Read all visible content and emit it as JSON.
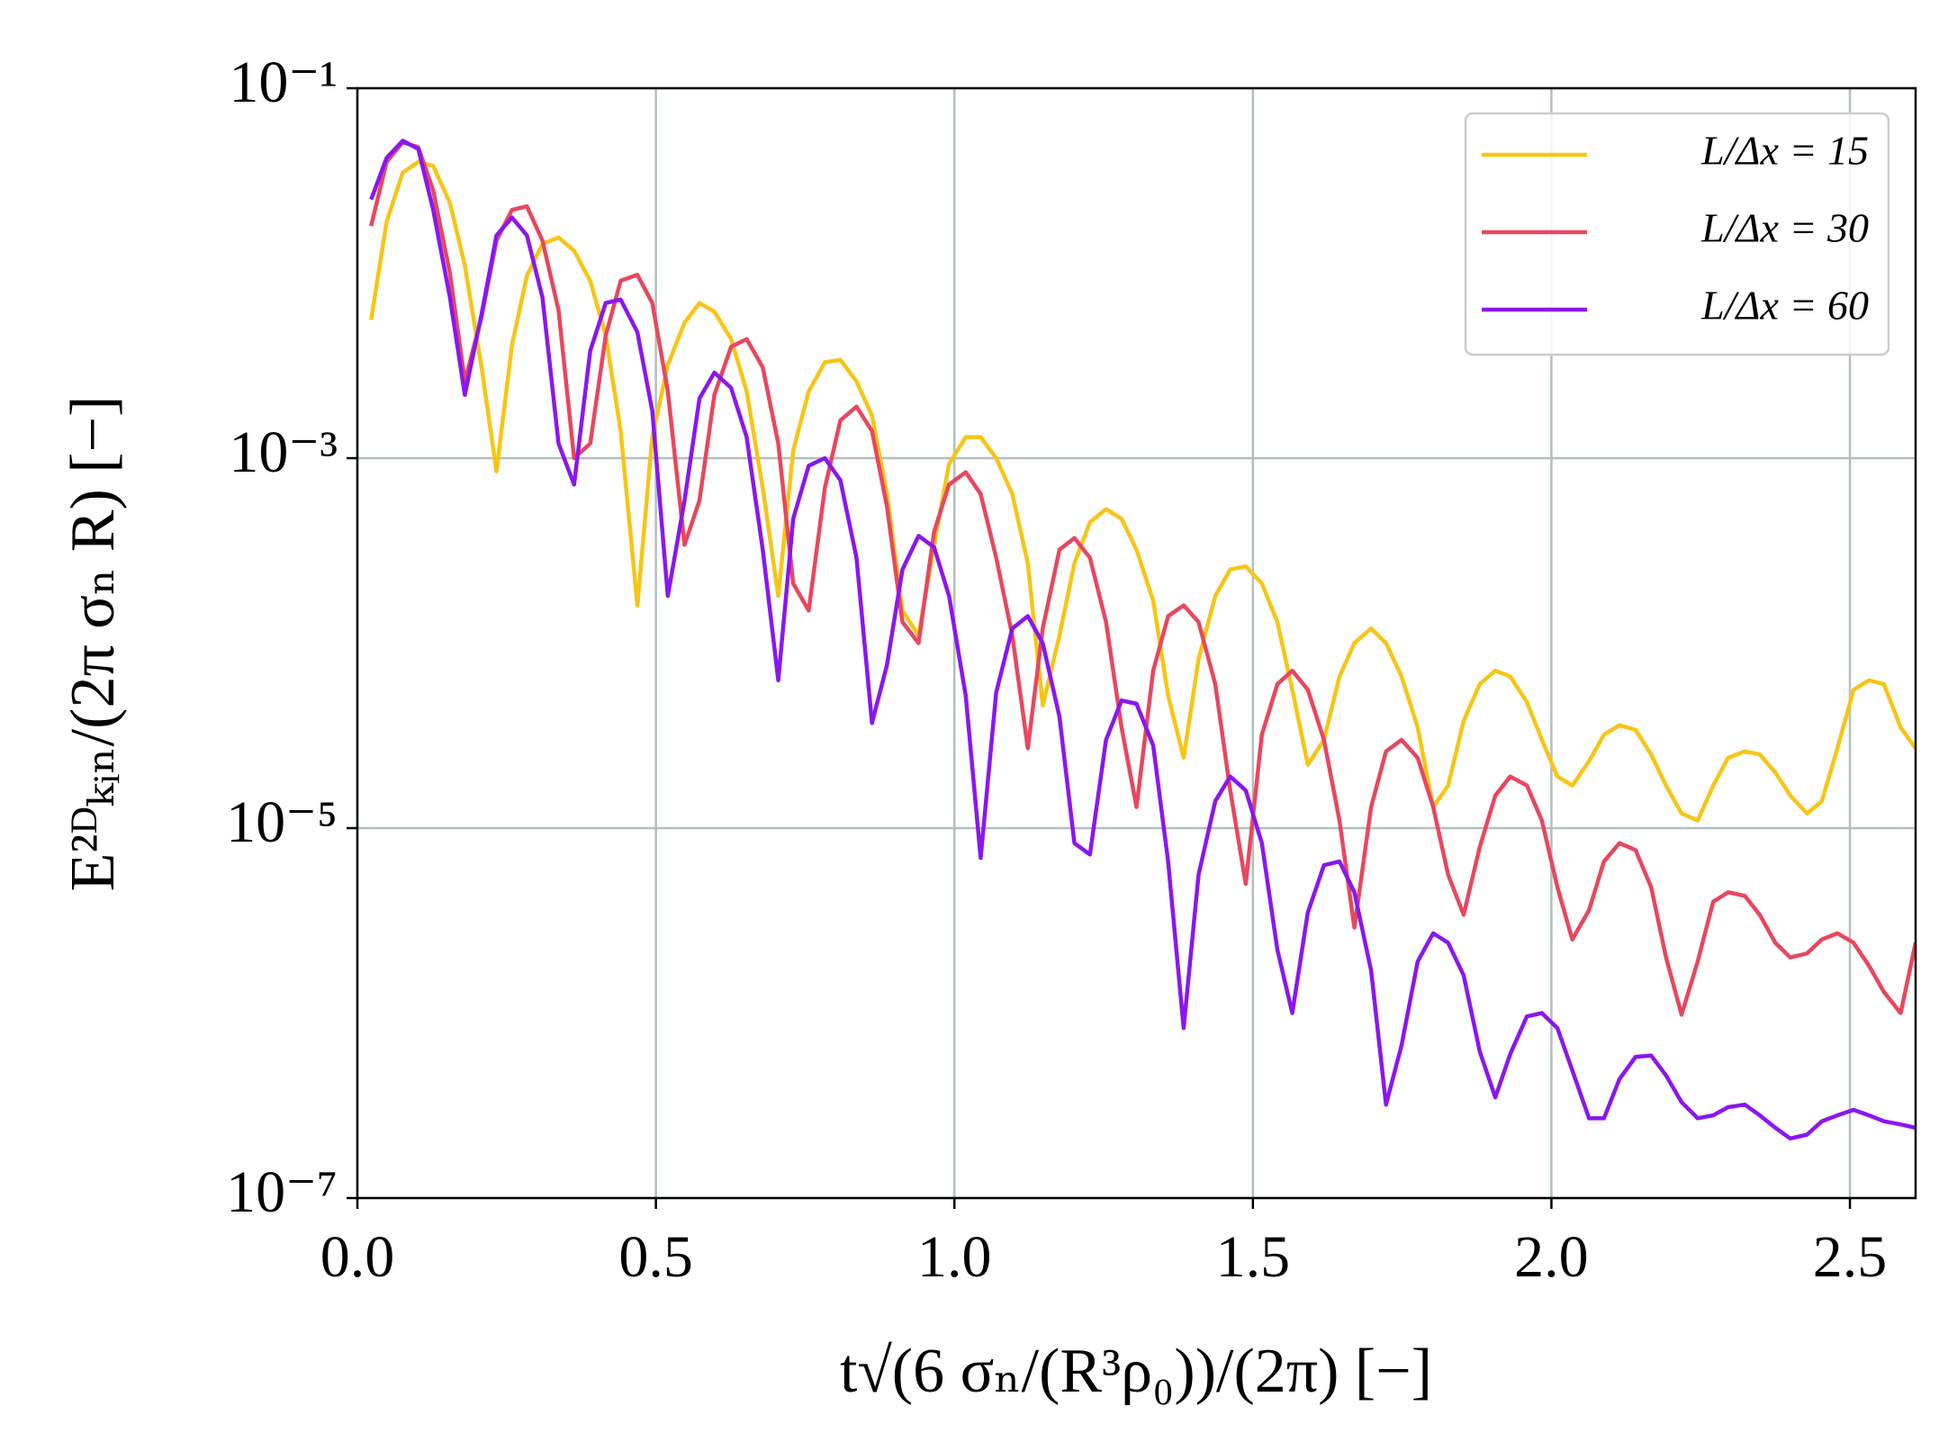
{
  "chart_data": {
    "type": "line",
    "xlabel": "t√(6 σₙ/(R³ρ₀))/(2π) [−]",
    "ylabel": "E²ᴰₖᵢₙ/(2π σₙ R) [−]",
    "yscale": "log",
    "grid": true,
    "legend": "upper right",
    "xlim": [
      0,
      2.61
    ],
    "ylim": [
      1e-07,
      0.1
    ],
    "xticks": [
      {
        "value": 0,
        "label": "0.0"
      },
      0.5,
      {
        "value": 1,
        "label": "1.0"
      },
      1.5,
      {
        "value": 2,
        "label": "2.0"
      },
      2.5
    ],
    "yticks": [
      {
        "value": 1e-07,
        "label": "10⁻⁷"
      },
      {
        "value": 1e-05,
        "label": "10⁻⁵"
      },
      {
        "value": 0.001,
        "label": "10⁻³"
      },
      {
        "value": 0.1,
        "label": "10⁻¹"
      }
    ],
    "x": [
      0.023,
      0.049,
      0.076,
      0.102,
      0.127,
      0.155,
      0.18,
      0.208,
      0.233,
      0.259,
      0.284,
      0.31,
      0.337,
      0.363,
      0.39,
      0.416,
      0.441,
      0.469,
      0.494,
      0.52,
      0.548,
      0.573,
      0.598,
      0.626,
      0.652,
      0.679,
      0.705,
      0.73,
      0.756,
      0.783,
      0.809,
      0.836,
      0.862,
      0.887,
      0.913,
      0.94,
      0.966,
      0.991,
      1.019,
      1.044,
      1.07,
      1.097,
      1.123,
      1.148,
      1.176,
      1.201,
      1.227,
      1.254,
      1.28,
      1.305,
      1.333,
      1.358,
      1.384,
      1.409,
      1.437,
      1.462,
      1.488,
      1.515,
      1.541,
      1.566,
      1.592,
      1.619,
      1.645,
      1.67,
      1.698,
      1.723,
      1.749,
      1.776,
      1.802,
      1.827,
      1.853,
      1.88,
      1.906,
      1.931,
      1.959,
      1.984,
      2.01,
      2.035,
      2.063,
      2.088,
      2.114,
      2.141,
      2.167,
      2.192,
      2.218,
      2.245,
      2.271,
      2.296,
      2.324,
      2.349,
      2.375,
      2.4,
      2.428,
      2.453,
      2.479,
      2.506,
      2.532,
      2.557,
      2.585,
      2.61
    ],
    "series": [
      {
        "name": "L/Δx = 15",
        "color": "#f7c516",
        "values": [
          0.0056,
          0.019,
          0.035,
          0.04,
          0.038,
          0.024,
          0.011,
          0.0031,
          0.00085,
          0.0041,
          0.0097,
          0.0144,
          0.0156,
          0.0132,
          0.0091,
          0.0046,
          0.0014,
          0.00016,
          0.0013,
          0.0032,
          0.0054,
          0.0069,
          0.0062,
          0.0044,
          0.0023,
          0.00069,
          0.00018,
          0.0011,
          0.0023,
          0.0033,
          0.0034,
          0.0026,
          0.0017,
          0.00064,
          0.00015,
          0.00011,
          0.00034,
          0.00093,
          0.0013,
          0.0013,
          0.001,
          0.00064,
          0.00027,
          4.6e-05,
          0.00011,
          0.00027,
          0.00045,
          0.00053,
          0.00047,
          0.00032,
          0.00017,
          5.2e-05,
          2.4e-05,
          8.2e-05,
          0.00018,
          0.00025,
          0.00026,
          0.00021,
          0.00013,
          5.6e-05,
          2.2e-05,
          3e-05,
          6.6e-05,
          0.0001,
          0.00012,
          0.0001,
          6.6e-05,
          3.5e-05,
          1.3e-05,
          1.7e-05,
          3.8e-05,
          6e-05,
          7.1e-05,
          6.6e-05,
          4.8e-05,
          3e-05,
          1.9e-05,
          1.7e-05,
          2.3e-05,
          3.2e-05,
          3.6e-05,
          3.4e-05,
          2.5e-05,
          1.7e-05,
          1.2e-05,
          1.1e-05,
          1.7e-05,
          2.4e-05,
          2.6e-05,
          2.5e-05,
          2e-05,
          1.5e-05,
          1.2e-05,
          1.4e-05,
          2.7e-05,
          5.6e-05,
          6.3e-05,
          6e-05,
          3.5e-05,
          2.7e-05
        ]
      },
      {
        "name": "L/Δx = 30",
        "color": "#e8475f",
        "values": [
          0.018,
          0.04,
          0.051,
          0.048,
          0.028,
          0.01,
          0.0026,
          0.0058,
          0.015,
          0.022,
          0.023,
          0.015,
          0.0063,
          0.001,
          0.0012,
          0.0046,
          0.0091,
          0.0098,
          0.0069,
          0.0023,
          0.00034,
          0.00059,
          0.0022,
          0.004,
          0.0044,
          0.0031,
          0.0012,
          0.00021,
          0.00015,
          0.00069,
          0.0016,
          0.0019,
          0.0014,
          0.00055,
          0.00013,
          0.0001,
          0.0004,
          0.00072,
          0.00084,
          0.00064,
          0.00029,
          0.00011,
          2.7e-05,
          0.00012,
          0.00032,
          0.00037,
          0.00029,
          0.00013,
          3.5e-05,
          1.3e-05,
          7.1e-05,
          0.00014,
          0.00016,
          0.00013,
          6e-05,
          1.6e-05,
          5e-06,
          3.2e-05,
          6e-05,
          7.1e-05,
          5.6e-05,
          3e-05,
          1.1e-05,
          2.9e-06,
          1.3e-05,
          2.6e-05,
          3e-05,
          2.4e-05,
          1.3e-05,
          5.6e-06,
          3.4e-06,
          7.9e-06,
          1.5e-05,
          1.9e-05,
          1.7e-05,
          1.1e-05,
          4.8e-06,
          2.5e-06,
          3.6e-06,
          6.6e-06,
          8.3e-06,
          7.6e-06,
          4.8e-06,
          2e-06,
          9.8e-07,
          1.9e-06,
          4e-06,
          4.5e-06,
          4.3e-06,
          3.4e-06,
          2.4e-06,
          2e-06,
          2.1e-06,
          2.5e-06,
          2.7e-06,
          2.4e-06,
          1.8e-06,
          1.3e-06,
          1e-06,
          2.4e-06
        ]
      },
      {
        "name": "L/Δx = 60",
        "color": "#8a17f0",
        "values": [
          0.025,
          0.042,
          0.052,
          0.047,
          0.022,
          0.0074,
          0.0022,
          0.006,
          0.016,
          0.02,
          0.016,
          0.0074,
          0.0012,
          0.00072,
          0.0038,
          0.0069,
          0.0072,
          0.0048,
          0.0018,
          0.00018,
          0.00059,
          0.0021,
          0.0029,
          0.0024,
          0.0013,
          0.00032,
          6.3e-05,
          0.00047,
          0.00091,
          0.001,
          0.00076,
          0.00029,
          3.7e-05,
          7.6e-05,
          0.00025,
          0.00038,
          0.00033,
          0.00018,
          5.2e-05,
          6.9e-06,
          5.4e-05,
          0.00012,
          0.00014,
          0.0001,
          4e-05,
          8.3e-06,
          7.2e-06,
          3e-05,
          4.9e-05,
          4.7e-05,
          2.8e-05,
          6.6e-06,
          8.3e-07,
          5.6e-06,
          1.4e-05,
          1.9e-05,
          1.6e-05,
          8.3e-06,
          2.2e-06,
          1e-06,
          3.5e-06,
          6.3e-06,
          6.6e-06,
          4.5e-06,
          1.7e-06,
          3.2e-07,
          6.7e-07,
          1.9e-06,
          2.7e-06,
          2.4e-06,
          1.6e-06,
          6.2e-07,
          3.5e-07,
          6e-07,
          9.6e-07,
          1e-06,
          8.3e-07,
          4.9e-07,
          2.7e-07,
          2.7e-07,
          4.4e-07,
          5.8e-07,
          5.9e-07,
          4.6e-07,
          3.3e-07,
          2.7e-07,
          2.8e-07,
          3.1e-07,
          3.2e-07,
          2.8e-07,
          2.4e-07,
          2.1e-07,
          2.2e-07,
          2.6e-07,
          2.8e-07,
          3e-07,
          2.8e-07,
          2.6e-07,
          2.5e-07,
          2.4e-07
        ]
      }
    ]
  }
}
